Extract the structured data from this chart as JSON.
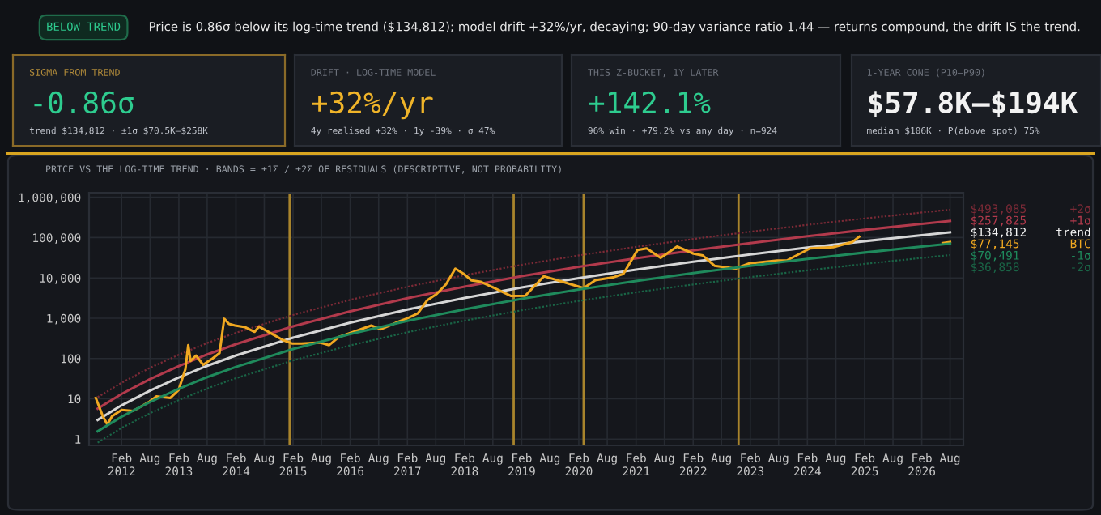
{
  "chart_data": [
    {
      "type": "other",
      "title": "BELOW TREND",
      "subtitle": "Price is 0.86σ below its log-time trend ($134,812); model drift +32%/yr, decaying; 90-day variance ratio 1.44 — returns compound, the drift IS the trend."
    },
    {
      "type": "other",
      "title": "SIGMA FROM TREND",
      "subtitle": "-0.86σ",
      "annotations": [
        "trend $134,812 · ±1σ $70.5K–$258K"
      ]
    },
    {
      "type": "other",
      "title": "DRIFT · LOG-TIME MODEL",
      "subtitle": "+32%/yr",
      "annotations": [
        "4y realised +32% · 1y -39% · σ 47%"
      ]
    },
    {
      "type": "other",
      "title": "THIS Z-BUCKET, 1Y LATER",
      "subtitle": "+142.1%",
      "annotations": [
        "96% win · +79.2% vs any day · n=924"
      ]
    },
    {
      "type": "other",
      "title": "1-YEAR CONE (P10–P90)",
      "subtitle": "$57.8K–$194K",
      "annotations": [
        "median $106K · P(above spot) 75%"
      ]
    },
    {
      "type": "line",
      "title": "PRICE VS THE LOG-TIME TREND · BANDS = ±1Σ / ±2Σ OF RESIDUALS (DESCRIPTIVE, NOT PROBABILITY)",
      "log": true,
      "grid": true,
      "legend": "right",
      "xlim": [
        "2011-07-08",
        "2026-10-25"
      ],
      "ylim": [
        0.7,
        1300000
      ],
      "yticks": [
        1,
        10,
        100,
        {
          "value": 1000,
          "label": "1,000"
        },
        {
          "value": 10000,
          "label": "10,000"
        },
        {
          "value": 100000,
          "label": "100,000"
        },
        {
          "value": 1000000,
          "label": "1,000,000"
        }
      ],
      "xticks": [
        {
          "value": "2012-02-01",
          "label": "Feb\n2012"
        },
        {
          "value": "2012-08-01",
          "label": "Aug"
        },
        {
          "value": "2013-02-01",
          "label": "Feb\n2013"
        },
        {
          "value": "2013-08-01",
          "label": "Aug"
        },
        {
          "value": "2014-02-01",
          "label": "Feb\n2014"
        },
        {
          "value": "2014-08-01",
          "label": "Aug"
        },
        {
          "value": "2015-02-01",
          "label": "Feb\n2015"
        },
        {
          "value": "2015-08-01",
          "label": "Aug"
        },
        {
          "value": "2016-02-01",
          "label": "Feb\n2016"
        },
        {
          "value": "2016-08-01",
          "label": "Aug"
        },
        {
          "value": "2017-02-01",
          "label": "Feb\n2017"
        },
        {
          "value": "2017-08-01",
          "label": "Aug"
        },
        {
          "value": "2018-02-01",
          "label": "Feb\n2018"
        },
        {
          "value": "2018-08-01",
          "label": "Aug"
        },
        {
          "value": "2019-02-01",
          "label": "Feb\n2019"
        },
        {
          "value": "2019-08-01",
          "label": "Aug"
        },
        {
          "value": "2020-02-01",
          "label": "Feb\n2020"
        },
        {
          "value": "2020-08-01",
          "label": "Aug"
        },
        {
          "value": "2021-02-01",
          "label": "Feb\n2021"
        },
        {
          "value": "2021-08-01",
          "label": "Aug"
        },
        {
          "value": "2022-02-01",
          "label": "Feb\n2022"
        },
        {
          "value": "2022-08-01",
          "label": "Aug"
        },
        {
          "value": "2023-02-01",
          "label": "Feb\n2023"
        },
        {
          "value": "2023-08-01",
          "label": "Aug"
        },
        {
          "value": "2024-02-01",
          "label": "Feb\n2024"
        },
        {
          "value": "2024-08-01",
          "label": "Aug"
        },
        {
          "value": "2025-02-01",
          "label": "Feb\n2025"
        },
        {
          "value": "2025-08-01",
          "label": "Aug"
        },
        {
          "value": "2026-02-01",
          "label": "Feb\n2026"
        },
        {
          "value": "2026-08-01",
          "label": "Aug"
        }
      ],
      "x": [
        "2011-09-01",
        "2012-02-01",
        "2012-08-01",
        "2013-02-01",
        "2013-08-01",
        "2014-02-01",
        "2015-02-01",
        "2016-02-01",
        "2017-02-01",
        "2018-02-01",
        "2019-02-01",
        "2020-02-01",
        "2021-02-01",
        "2022-02-01",
        "2023-02-01",
        "2024-02-01",
        "2025-02-01",
        "2026-02-01",
        "2026-08-01"
      ],
      "ref_lines": [
        {
          "axis": "x",
          "value": "2015-01-10",
          "color": "#a8842c"
        },
        {
          "axis": "x",
          "value": "2018-12-12",
          "color": "#a8842c"
        },
        {
          "axis": "x",
          "value": "2020-03-03",
          "color": "#a8842c"
        },
        {
          "axis": "x",
          "value": "2022-11-18",
          "color": "#a8842c"
        }
      ],
      "series": [
        {
          "name": "+2σ",
          "color": "#7a2a36",
          "line_style": "dotted",
          "values": [
            11,
            25,
            59,
            124,
            242,
            436,
            1204,
            2848,
            6032,
            11680,
            21120,
            36090,
            58930,
            92230,
            140200,
            206800,
            298300,
            419400,
            493085
          ],
          "value_labels": [
            null,
            null,
            null,
            null,
            null,
            null,
            null,
            null,
            null,
            null,
            null,
            null,
            null,
            null,
            null,
            null,
            null,
            null,
            "$493,085"
          ]
        },
        {
          "name": "+1σ",
          "color": "#b23a4c",
          "line_style": "solid",
          "values": [
            5.7,
            13.2,
            31,
            65,
            126,
            227,
            628,
            1486,
            3148,
            6093,
            11020,
            18830,
            30750,
            48130,
            73150,
            107900,
            155700,
            218900,
            257825
          ],
          "value_labels": [
            null,
            null,
            null,
            null,
            null,
            null,
            null,
            null,
            null,
            null,
            null,
            null,
            null,
            null,
            null,
            null,
            null,
            null,
            "$257,825"
          ]
        },
        {
          "name": "trend",
          "color": "#d6d6d6",
          "line_style": "solid",
          "values": [
            3.0,
            6.9,
            16,
            34,
            66,
            119,
            329,
            778,
            1648,
            3190,
            5770,
            9860,
            16100,
            25200,
            38300,
            56500,
            81500,
            114600,
            134812
          ],
          "value_labels": [
            null,
            null,
            null,
            null,
            null,
            null,
            null,
            null,
            null,
            null,
            null,
            null,
            null,
            null,
            null,
            null,
            null,
            null,
            "$134,812"
          ]
        },
        {
          "name": "BTC",
          "color": "#f0a821",
          "line_style": "solid",
          "x": [
            "2011-08-20",
            "2011-10-04",
            "2011-11-02",
            "2011-12-02",
            "2012-02-01",
            "2012-04-15",
            "2012-07-28",
            "2012-09-11",
            "2012-12-09",
            "2013-01-30",
            "2013-03-15",
            "2013-04-02",
            "2013-04-17",
            "2013-05-22",
            "2013-07-06",
            "2013-09-04",
            "2013-10-19",
            "2013-11-18",
            "2013-12-18",
            "2014-01-26",
            "2014-04-01",
            "2014-05-31",
            "2014-06-29",
            "2014-09-27",
            "2014-11-26",
            "2015-01-25",
            "2015-03-26",
            "2015-07-23",
            "2015-09-20",
            "2015-11-19",
            "2016-01-26",
            "2016-06-15",
            "2016-08-14",
            "2016-12-10",
            "2017-01-28",
            "2017-04-09",
            "2017-06-08",
            "2017-08-07",
            "2017-10-05",
            "2017-12-04",
            "2018-01-27",
            "2018-03-18",
            "2018-05-17",
            "2018-07-30",
            "2018-11-26",
            "2019-02-24",
            "2019-06-23",
            "2019-11-20",
            "2020-03-03",
            "2020-05-17",
            "2020-09-14",
            "2020-11-12",
            "2021-02-10",
            "2021-04-10",
            "2021-07-08",
            "2021-10-21",
            "2022-02-03",
            "2022-04-04",
            "2022-06-17",
            "2022-10-29",
            "2023-01-27",
            "2023-07-24",
            "2023-09-22",
            "2024-02-18",
            "2024-07-16",
            "2024-11-13",
            "2024-12-28",
            "2025-09-01",
            "2026-06-15",
            "2026-08-01"
          ],
          "values": [
            10.5,
            3.7,
            2.3,
            3.7,
            5.3,
            5,
            8.5,
            11.5,
            10.5,
            16.5,
            55,
            215,
            87,
            118,
            70,
            100,
            137,
            970,
            720,
            660,
            600,
            460,
            620,
            395,
            290,
            236,
            236,
            250,
            215,
            340,
            420,
            660,
            530,
            830,
            980,
            1320,
            2800,
            4000,
            6900,
            17000,
            12600,
            8700,
            8000,
            5900,
            3550,
            3600,
            11000,
            7400,
            5600,
            8800,
            10500,
            12600,
            49000,
            54000,
            31500,
            60000,
            40000,
            36000,
            20000,
            17000,
            23000,
            27000,
            27000,
            54000,
            58000,
            77000,
            105000,
            null,
            73000,
            77145
          ],
          "value_labels": [
            null,
            null,
            null,
            null,
            null,
            null,
            null,
            null,
            null,
            null,
            null,
            null,
            null,
            null,
            null,
            null,
            null,
            null,
            null,
            null,
            null,
            null,
            null,
            null,
            null,
            null,
            null,
            null,
            null,
            null,
            null,
            null,
            null,
            null,
            null,
            null,
            null,
            null,
            null,
            null,
            null,
            null,
            null,
            null,
            null,
            null,
            null,
            null,
            null,
            null,
            null,
            null,
            null,
            null,
            null,
            null,
            null,
            null,
            null,
            null,
            null,
            null,
            null,
            null,
            null,
            null,
            null,
            null,
            null,
            "$77,145"
          ]
        },
        {
          "name": "-1σ",
          "color": "#1f8a5c",
          "line_style": "solid",
          "values": [
            1.57,
            3.6,
            8.4,
            17.8,
            34.5,
            62,
            172,
            407,
            862,
            1668,
            3018,
            5157,
            8420,
            13180,
            20030,
            29550,
            42620,
            59940,
            70491
          ],
          "value_labels": [
            null,
            null,
            null,
            null,
            null,
            null,
            null,
            null,
            null,
            null,
            null,
            null,
            null,
            null,
            null,
            null,
            null,
            null,
            "$70,491"
          ]
        },
        {
          "name": "-2σ",
          "color": "#1a6446",
          "line_style": "dotted",
          "values": [
            0.82,
            1.9,
            4.4,
            9.3,
            18,
            32.5,
            90,
            212,
            450,
            871,
            1575,
            2692,
            4395,
            6880,
            10460,
            15420,
            22250,
            31290,
            36858
          ],
          "value_labels": [
            null,
            null,
            null,
            null,
            null,
            null,
            null,
            null,
            null,
            null,
            null,
            null,
            null,
            null,
            null,
            null,
            null,
            null,
            "$36,858"
          ]
        }
      ]
    }
  ]
}
